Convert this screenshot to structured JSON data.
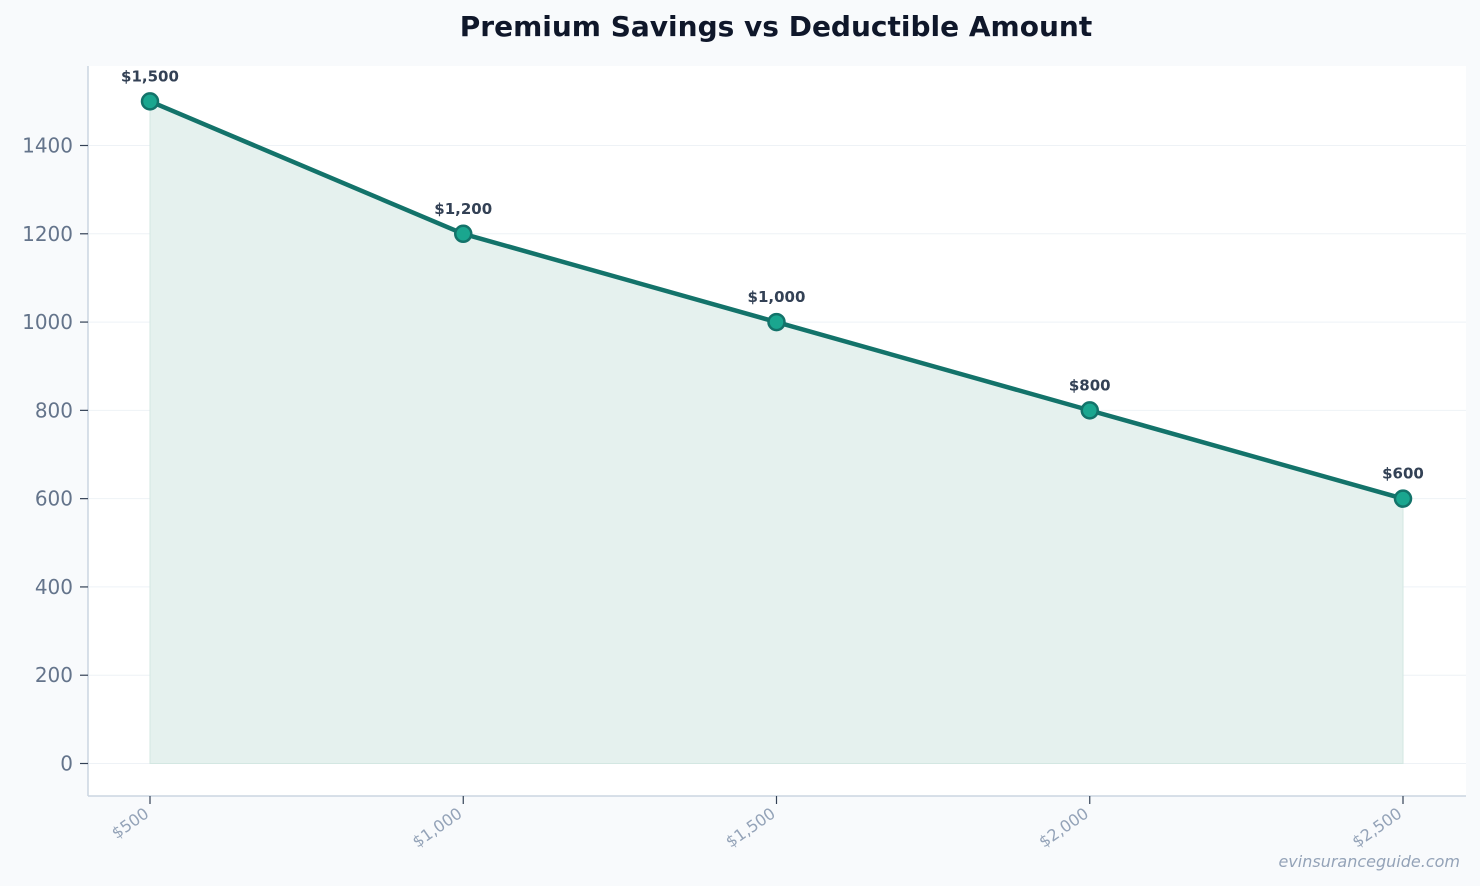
{
  "chart_data": {
    "type": "area",
    "title": "Premium Savings vs Deductible Amount",
    "xlabel": "",
    "ylabel": "",
    "categories": [
      "$500",
      "$1,000",
      "$1,500",
      "$2,000",
      "$2,500"
    ],
    "series": [
      {
        "values": [
          1500,
          1200,
          1000,
          800,
          600
        ],
        "data_labels": [
          "$1,500",
          "$1,200",
          "$1,000",
          "$800",
          "$600"
        ]
      }
    ],
    "yticks": [
      0,
      200,
      400,
      600,
      800,
      1000,
      1200,
      1400
    ],
    "ylim": [
      -75,
      1575
    ],
    "grid": true,
    "legend": "none",
    "colors": {
      "line": "#13736a",
      "marker_fill": "#1aa68f",
      "area_fill": "#e5f1ee",
      "grid": "#eef2f6",
      "axis": "#cbd5e1",
      "background": "#f8fafc",
      "plot_background": "#ffffff"
    }
  },
  "watermark": "evinsuranceguide.com"
}
